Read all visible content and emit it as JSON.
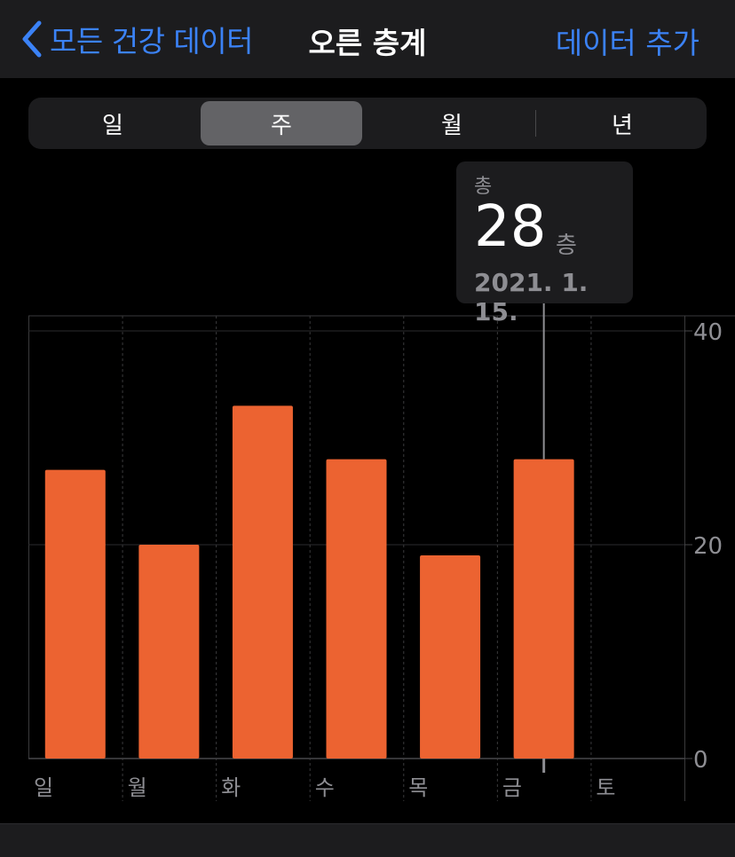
{
  "colors": {
    "accent": "#3b82f6",
    "bar": "#ec6331",
    "background": "#000000"
  },
  "nav": {
    "back_label": "모든 건강 데이터",
    "title": "오른 층계",
    "add_label": "데이터 추가"
  },
  "segments": [
    {
      "label": "일",
      "selected": false
    },
    {
      "label": "주",
      "selected": true
    },
    {
      "label": "월",
      "selected": false
    },
    {
      "label": "년",
      "selected": false
    }
  ],
  "callout": {
    "label": "총",
    "value": "28",
    "unit": "층",
    "date": "2021. 1. 15."
  },
  "chart_data": {
    "type": "bar",
    "categories": [
      "일",
      "월",
      "화",
      "수",
      "목",
      "금",
      "토"
    ],
    "values": [
      27,
      20,
      33,
      28,
      19,
      28,
      null
    ],
    "ylim": [
      0,
      40
    ],
    "yticks": [
      0,
      20,
      40
    ],
    "ytick_labels": [
      "0",
      "20",
      "40"
    ],
    "highlighted_index": 5,
    "grid": true
  }
}
